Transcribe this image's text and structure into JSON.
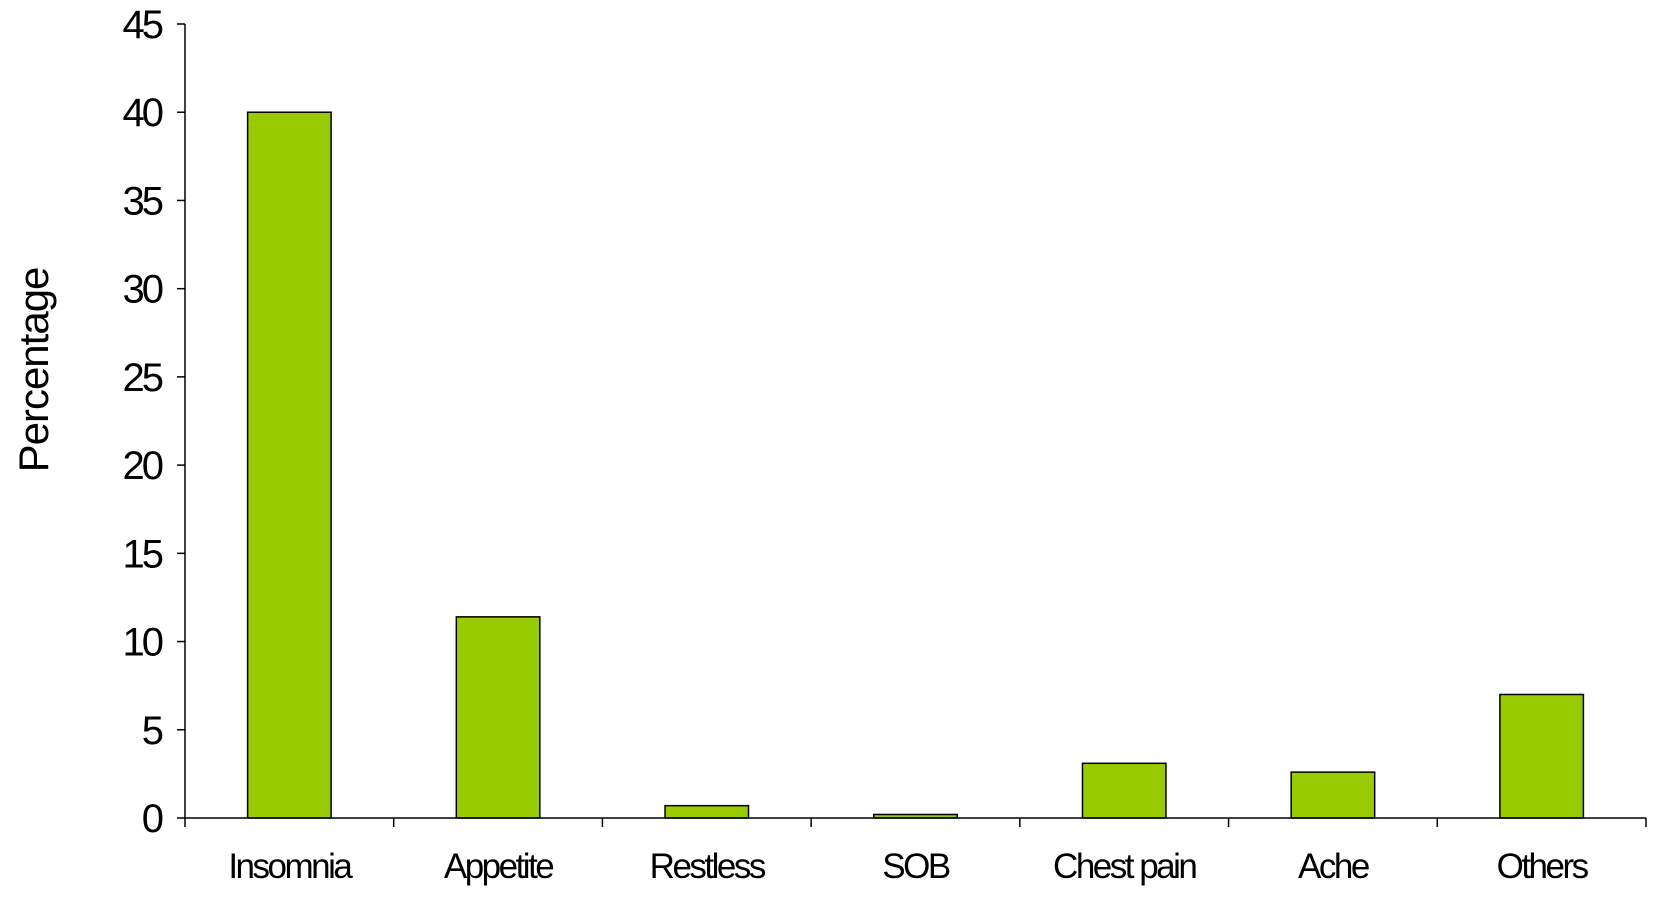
{
  "chart_data": {
    "type": "bar",
    "title": "",
    "xlabel": "",
    "ylabel": "Percentage",
    "categories": [
      "Insomnia",
      "Appetite",
      "Restless",
      "SOB",
      "Chest pain",
      "Ache",
      "Others"
    ],
    "values": [
      40.0,
      11.4,
      0.7,
      0.2,
      3.1,
      2.6,
      7.0
    ],
    "ylim": [
      0,
      45
    ],
    "yticks": [
      0,
      5,
      10,
      15,
      20,
      25,
      30,
      35,
      40,
      45
    ],
    "ytick_labels": [
      "0",
      "5",
      "10",
      "15",
      "20",
      "25",
      "30",
      "35",
      "40",
      "45"
    ],
    "grid": false,
    "legend": "none",
    "colors": {
      "bar_fill": "#99cc00",
      "bar_stroke": "#000000",
      "axis": "#000000"
    }
  }
}
